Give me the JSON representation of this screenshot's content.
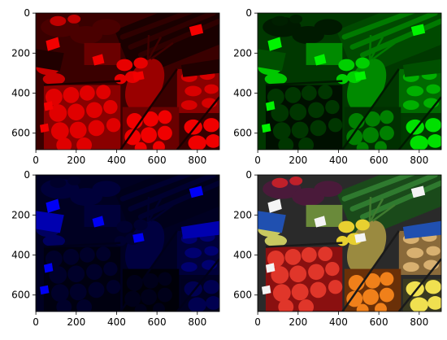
{
  "panels": [
    {
      "id": "red",
      "tint": "#ff0000",
      "base": "#3a0000",
      "x_ticks": [
        "0",
        "200",
        "400",
        "600",
        "800"
      ],
      "y_ticks": [
        "0",
        "200",
        "400",
        "600"
      ]
    },
    {
      "id": "green",
      "tint": "#00ff00",
      "base": "#003800",
      "x_ticks": [
        "0",
        "200",
        "400",
        "600",
        "800"
      ],
      "y_ticks": [
        "0",
        "200",
        "400",
        "600"
      ]
    },
    {
      "id": "blue",
      "tint": "#0000ff",
      "base": "#000022",
      "x_ticks": [
        "0",
        "200",
        "400",
        "600",
        "800"
      ],
      "y_ticks": [
        "0",
        "200",
        "400",
        "600"
      ]
    },
    {
      "id": "rgb",
      "tint": "#ffffff",
      "base": "#2a2a2a",
      "x_ticks": [
        "0",
        "200",
        "400",
        "600",
        "800"
      ],
      "y_ticks": [
        "0",
        "200",
        "400",
        "600"
      ]
    }
  ],
  "image_extent": {
    "width": 910,
    "height": 683
  }
}
